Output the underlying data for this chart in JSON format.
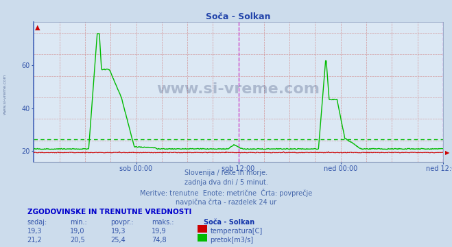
{
  "title": "Soča - Solkan",
  "bg_color": "#ccdcec",
  "plot_bg_color": "#dce8f4",
  "grid_color_red": "#d08080",
  "grid_color_blue": "#8899bb",
  "ylim": [
    15,
    80
  ],
  "yticks": [
    20,
    40,
    60
  ],
  "xlabel_color": "#3355aa",
  "ylabel_color": "#3355aa",
  "title_color": "#2244aa",
  "n_points": 576,
  "x_tick_labels": [
    "sob 00:00",
    "sob 12:00",
    "ned 00:00",
    "ned 12:00"
  ],
  "temp_avg": 19.3,
  "temp_color": "#cc0000",
  "flow_avg": 25.4,
  "flow_color": "#00bb00",
  "navpicna_color": "#cc44cc",
  "watermark": "www.si-vreme.com",
  "subtitle1": "Slovenija / reke in morje.",
  "subtitle2": "zadnja dva dni / 5 minut.",
  "subtitle3": "Meritve: trenutne  Enote: metrične  Črta: povprečje",
  "subtitle4": "navpična črta - razdelek 24 ur",
  "table_header": "ZGODOVINSKE IN TRENUTNE VREDNOSTI",
  "col_headers": [
    "sedaj:",
    "min.:",
    "povpr.:",
    "maks.:"
  ],
  "temp_row": [
    "19,3",
    "19,0",
    "19,3",
    "19,9"
  ],
  "flow_row": [
    "21,2",
    "20,5",
    "25,4",
    "74,8"
  ],
  "legend_station": "Soča - Solkan",
  "legend_temp": "temperatura[C]",
  "legend_flow": "pretok[m3/s]",
  "left_spine_color": "#4466bb"
}
